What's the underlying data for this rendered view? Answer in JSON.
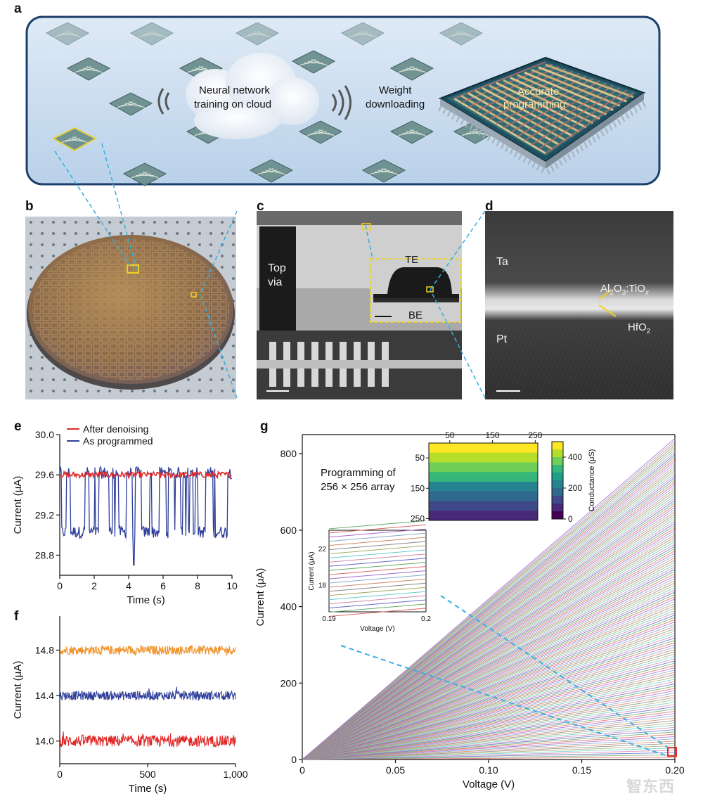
{
  "panels": {
    "a": {
      "letter": "a",
      "cloud_text_line1": "Neural network",
      "cloud_text_line2": "training on cloud",
      "weight_line1": "Weight",
      "weight_line2": "downloading",
      "chip_line1": "Accurate",
      "chip_line2": "programming"
    },
    "b": {
      "letter": "b"
    },
    "c": {
      "letter": "c",
      "top_via_line1": "Top",
      "top_via_line2": "via",
      "te": "TE",
      "be": "BE"
    },
    "d": {
      "letter": "d",
      "ta": "Ta",
      "pt": "Pt",
      "al2o3_main": "Al",
      "al2o3_sub1": "2",
      "al2o3_mid": "O",
      "al2o3_sub2": "3",
      "al2o3_rest": ":TiO",
      "al2o3_subx": "x",
      "hfo2_main": "HfO",
      "hfo2_sub": "2"
    },
    "e": {
      "letter": "e"
    },
    "f": {
      "letter": "f"
    },
    "g": {
      "letter": "g",
      "inset_title_line1": "Programming of",
      "inset_title_line2": "256 × 256 array"
    }
  },
  "colors": {
    "frame_fill": "#c9dcee",
    "frame_stroke": "#1c3f6b",
    "dashed": "#38aee0",
    "red": "#e02828",
    "blue": "#2f3f9a",
    "orange": "#f0922a"
  },
  "chart_data": [
    {
      "id": "e",
      "type": "line",
      "title": "",
      "xlabel": "Time (s)",
      "ylabel": "Current (μA)",
      "xlim": [
        0,
        10
      ],
      "ylim": [
        28.6,
        30.0
      ],
      "xticks": [
        "0",
        "2",
        "4",
        "6",
        "8",
        "10"
      ],
      "xtick_values": [
        0,
        2,
        4,
        6,
        8,
        10
      ],
      "yticks": [
        "28.8",
        "29.2",
        "29.6",
        "30.0"
      ],
      "ytick_values": [
        28.8,
        29.2,
        29.6,
        30.0
      ],
      "legend": [
        "After denoising",
        "As programmed"
      ],
      "series": [
        {
          "name": "After denoising",
          "color": "#e02828",
          "level": 29.6,
          "noise": 0.03
        },
        {
          "name": "As programmed",
          "color": "#2f3f9a",
          "high": 29.62,
          "low": 29.03,
          "spike_time": 4.3,
          "spike_value": 28.7
        }
      ]
    },
    {
      "id": "f",
      "type": "line",
      "xlabel": "Time (s)",
      "ylabel": "Current (μA)",
      "xlim": [
        0,
        1000
      ],
      "ylim": [
        13.8,
        15.1
      ],
      "xticks": [
        "0",
        "500",
        "1,000"
      ],
      "xtick_values": [
        0,
        500,
        1000
      ],
      "yticks": [
        "14.0",
        "14.4",
        "14.8"
      ],
      "ytick_values": [
        14.0,
        14.4,
        14.8
      ],
      "series": [
        {
          "name": "level-14.8",
          "color": "#f0922a",
          "level": 14.8,
          "noise": 0.04
        },
        {
          "name": "level-14.4",
          "color": "#2f3f9a",
          "level": 14.4,
          "noise": 0.04
        },
        {
          "name": "level-14.0",
          "color": "#e02828",
          "level": 14.0,
          "noise": 0.05
        }
      ]
    },
    {
      "id": "g",
      "type": "line",
      "xlabel": "Voltage (V)",
      "ylabel": "Current (μA)",
      "xlim": [
        0,
        0.2
      ],
      "ylim": [
        0,
        850
      ],
      "xticks": [
        "0",
        "0.05",
        "0.10",
        "0.15",
        "0.20"
      ],
      "xtick_values": [
        0,
        0.05,
        0.1,
        0.15,
        0.2
      ],
      "yticks": [
        "0",
        "200",
        "400",
        "600",
        "800"
      ],
      "ytick_values": [
        0,
        200,
        400,
        600,
        800
      ],
      "max_current": 840,
      "num_lines": 256,
      "heatmap": {
        "type": "heatmap",
        "xticks": [
          "50",
          "150",
          "250"
        ],
        "xtick_values": [
          50,
          150,
          250
        ],
        "yticks": [
          "50",
          "150",
          "250"
        ],
        "ytick_values": [
          50,
          150,
          250
        ],
        "colorbar_label": "Conductance (μS)",
        "colorbar_ticks": [
          "0",
          "200",
          "400"
        ],
        "colorbar_tick_values": [
          0,
          200,
          400
        ],
        "colorbar_range": [
          0,
          500
        ],
        "row_bands": 8
      },
      "zoom_inset": {
        "xlabel": "Voltage (V)",
        "ylabel": "Current (μA)",
        "xlim": [
          0.19,
          0.2
        ],
        "ylim": [
          15,
          24
        ],
        "xticks": [
          "0.19",
          "0.2"
        ],
        "xtick_values": [
          0.19,
          0.2
        ],
        "yticks": [
          "18",
          "22"
        ],
        "ytick_values": [
          18,
          22
        ]
      }
    }
  ],
  "watermark": "智东西"
}
